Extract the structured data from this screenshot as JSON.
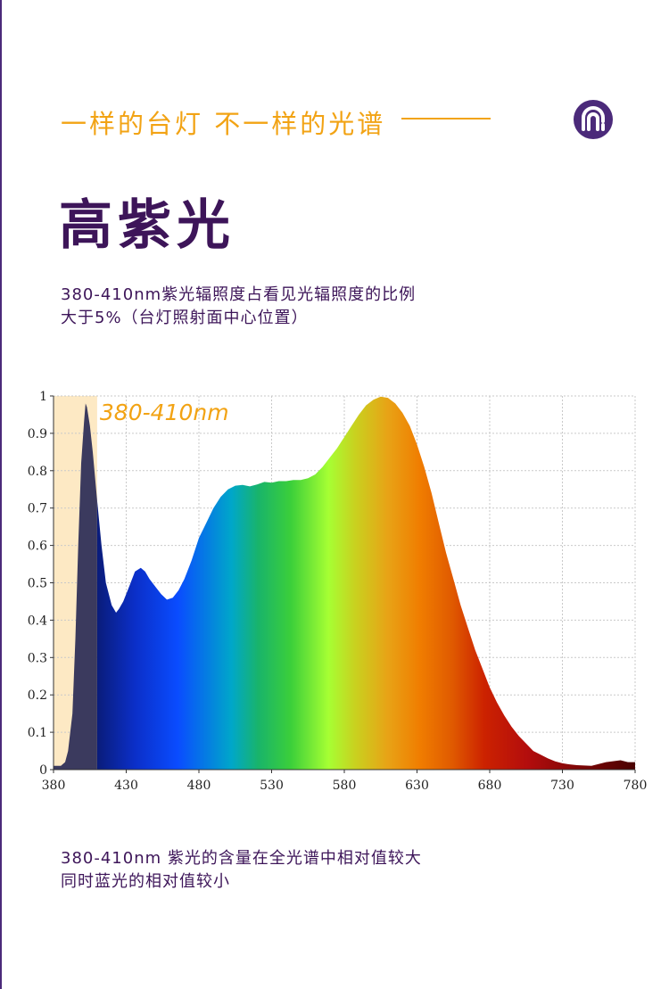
{
  "header": {
    "tagline": "一样的台灯 不一样的光谱",
    "logo_icon": "brand-logo-icon",
    "accent_color": "#f2a314",
    "brand_color": "#4b2a7a"
  },
  "title": "高紫光",
  "description": {
    "line1": "380-410nm紫光辐照度占看见光辐照度的比例",
    "line2": "大于5%（台灯照射面中心位置）"
  },
  "footer": {
    "line1": "380-410nm 紫光的含量在全光谱中相对值较大",
    "line2": "同时蓝光的相对值较小"
  },
  "chart_data": {
    "type": "area",
    "title": "",
    "xlabel": "",
    "ylabel": "",
    "xlim": [
      380,
      780
    ],
    "ylim": [
      0,
      1
    ],
    "x_ticks": [
      "380",
      "430",
      "480",
      "530",
      "580",
      "630",
      "680",
      "730",
      "780"
    ],
    "y_ticks": [
      "0",
      "0.1",
      "0.2",
      "0.3",
      "0.4",
      "0.5",
      "0.6",
      "0.7",
      "0.8",
      "0.9",
      "1"
    ],
    "grid": true,
    "highlight": {
      "range": [
        380,
        410
      ],
      "label": "380-410nm",
      "color": "#fde9c4"
    },
    "series": [
      {
        "points": [
          [
            380,
            0.01
          ],
          [
            385,
            0.01
          ],
          [
            388,
            0.02
          ],
          [
            390,
            0.05
          ],
          [
            393,
            0.15
          ],
          [
            395,
            0.35
          ],
          [
            397,
            0.6
          ],
          [
            399,
            0.82
          ],
          [
            401,
            0.93
          ],
          [
            402,
            0.98
          ],
          [
            403,
            0.97
          ],
          [
            405,
            0.92
          ],
          [
            407,
            0.85
          ],
          [
            410,
            0.72
          ],
          [
            413,
            0.6
          ],
          [
            416,
            0.5
          ],
          [
            420,
            0.44
          ],
          [
            423,
            0.42
          ],
          [
            425,
            0.43
          ],
          [
            428,
            0.45
          ],
          [
            432,
            0.49
          ],
          [
            436,
            0.53
          ],
          [
            440,
            0.54
          ],
          [
            443,
            0.53
          ],
          [
            446,
            0.51
          ],
          [
            450,
            0.49
          ],
          [
            454,
            0.47
          ],
          [
            458,
            0.455
          ],
          [
            462,
            0.46
          ],
          [
            466,
            0.48
          ],
          [
            470,
            0.51
          ],
          [
            475,
            0.56
          ],
          [
            480,
            0.62
          ],
          [
            485,
            0.66
          ],
          [
            490,
            0.7
          ],
          [
            495,
            0.73
          ],
          [
            500,
            0.75
          ],
          [
            505,
            0.76
          ],
          [
            510,
            0.762
          ],
          [
            515,
            0.758
          ],
          [
            520,
            0.763
          ],
          [
            525,
            0.77
          ],
          [
            530,
            0.768
          ],
          [
            535,
            0.772
          ],
          [
            540,
            0.772
          ],
          [
            545,
            0.775
          ],
          [
            550,
            0.775
          ],
          [
            555,
            0.78
          ],
          [
            560,
            0.79
          ],
          [
            565,
            0.81
          ],
          [
            570,
            0.835
          ],
          [
            575,
            0.86
          ],
          [
            580,
            0.89
          ],
          [
            585,
            0.92
          ],
          [
            590,
            0.95
          ],
          [
            595,
            0.975
          ],
          [
            600,
            0.99
          ],
          [
            605,
            0.998
          ],
          [
            610,
            0.995
          ],
          [
            615,
            0.98
          ],
          [
            620,
            0.955
          ],
          [
            625,
            0.92
          ],
          [
            630,
            0.87
          ],
          [
            635,
            0.81
          ],
          [
            640,
            0.74
          ],
          [
            645,
            0.66
          ],
          [
            650,
            0.58
          ],
          [
            655,
            0.51
          ],
          [
            660,
            0.44
          ],
          [
            665,
            0.38
          ],
          [
            670,
            0.32
          ],
          [
            675,
            0.27
          ],
          [
            680,
            0.22
          ],
          [
            685,
            0.18
          ],
          [
            690,
            0.145
          ],
          [
            695,
            0.115
          ],
          [
            700,
            0.09
          ],
          [
            705,
            0.07
          ],
          [
            710,
            0.05
          ],
          [
            715,
            0.04
          ],
          [
            720,
            0.03
          ],
          [
            725,
            0.022
          ],
          [
            730,
            0.017
          ],
          [
            735,
            0.014
          ],
          [
            740,
            0.012
          ],
          [
            745,
            0.011
          ],
          [
            750,
            0.01
          ],
          [
            760,
            0.02
          ],
          [
            770,
            0.025
          ],
          [
            775,
            0.02
          ],
          [
            780,
            0.02
          ]
        ]
      }
    ]
  }
}
